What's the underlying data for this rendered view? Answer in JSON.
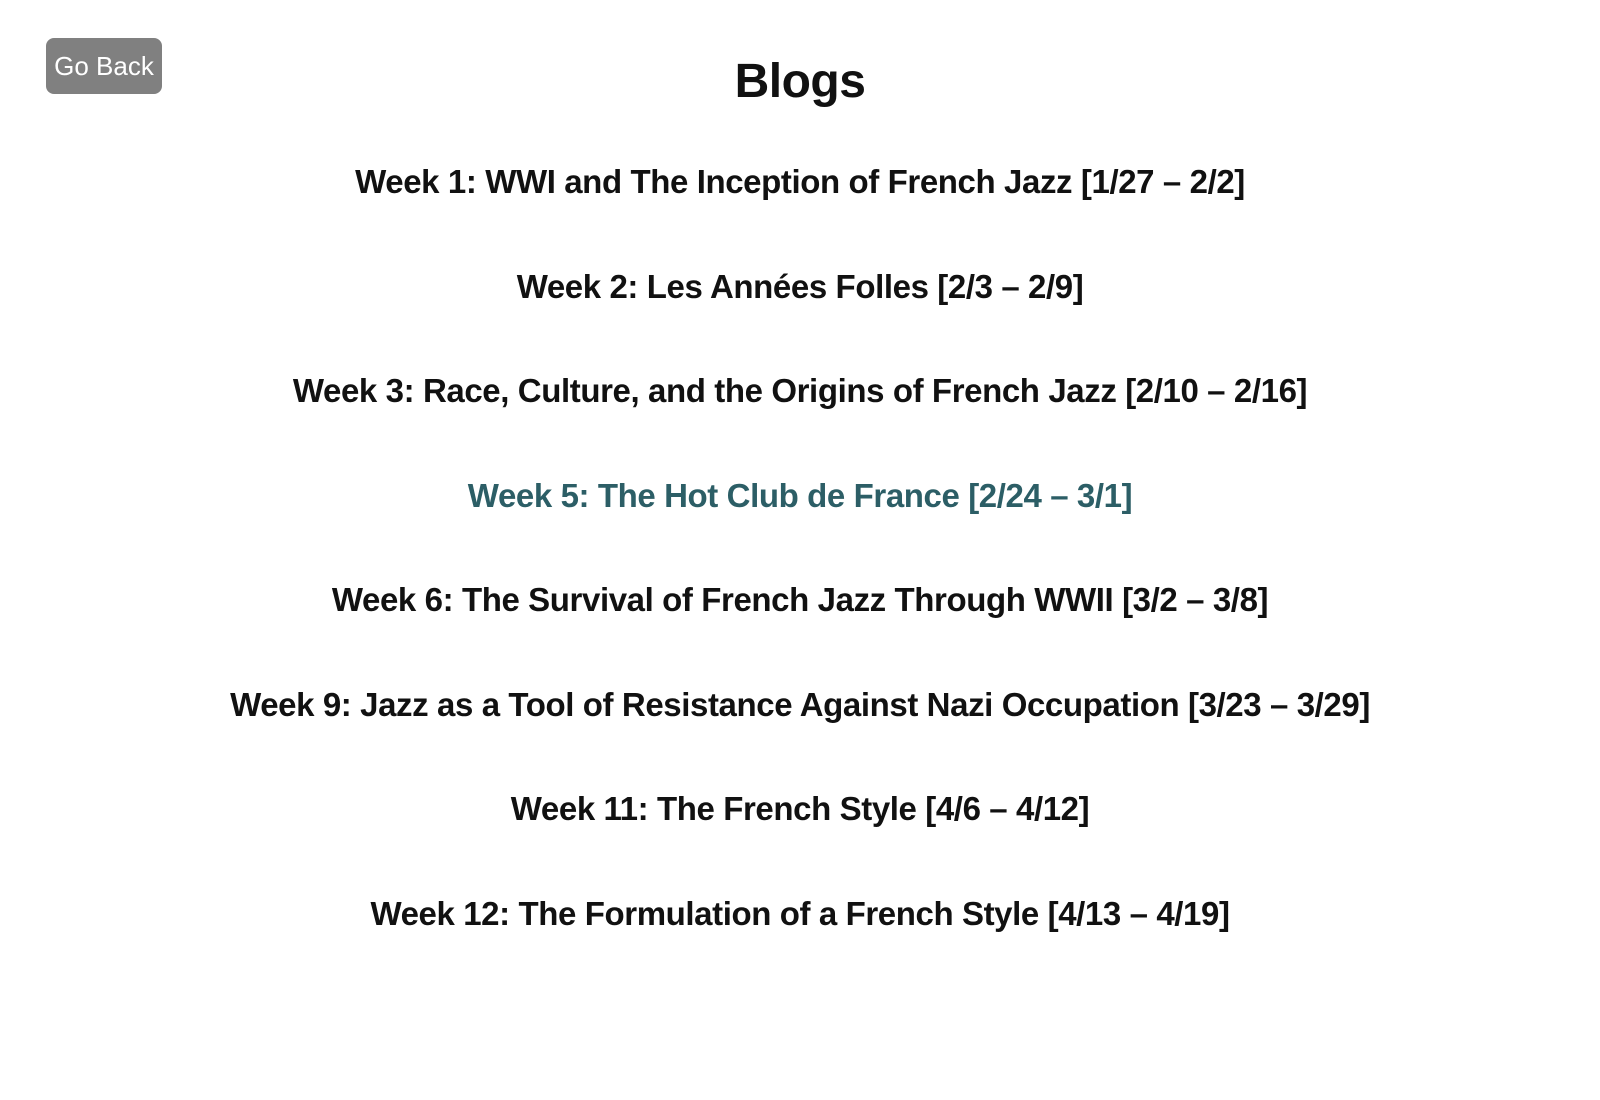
{
  "nav": {
    "back_label": "Go Back"
  },
  "page": {
    "title": "Blogs"
  },
  "colors": {
    "text": "#111111",
    "highlight_link": "#2c5e66",
    "button_bg": "#808080",
    "button_text": "#ffffff"
  },
  "blogs": [
    {
      "label": "Week 1: WWI and The Inception of French Jazz [1/27 – 2/2]"
    },
    {
      "label": "Week 2: Les Années Folles [2/3 – 2/9]"
    },
    {
      "label": "Week 3: Race, Culture, and the Origins of French Jazz [2/10 – 2/16]"
    },
    {
      "label": "Week 5: The Hot Club de France [2/24 – 3/1]"
    },
    {
      "label": "Week 6: The Survival of French Jazz Through WWII [3/2 – 3/8]"
    },
    {
      "label": "Week 9: Jazz as a Tool of Resistance Against Nazi Occupation [3/23 – 3/29]"
    },
    {
      "label": "Week 11: The French Style [4/6 – 4/12]"
    },
    {
      "label": "Week 12: The Formulation of a French Style [4/13 – 4/19]"
    }
  ]
}
